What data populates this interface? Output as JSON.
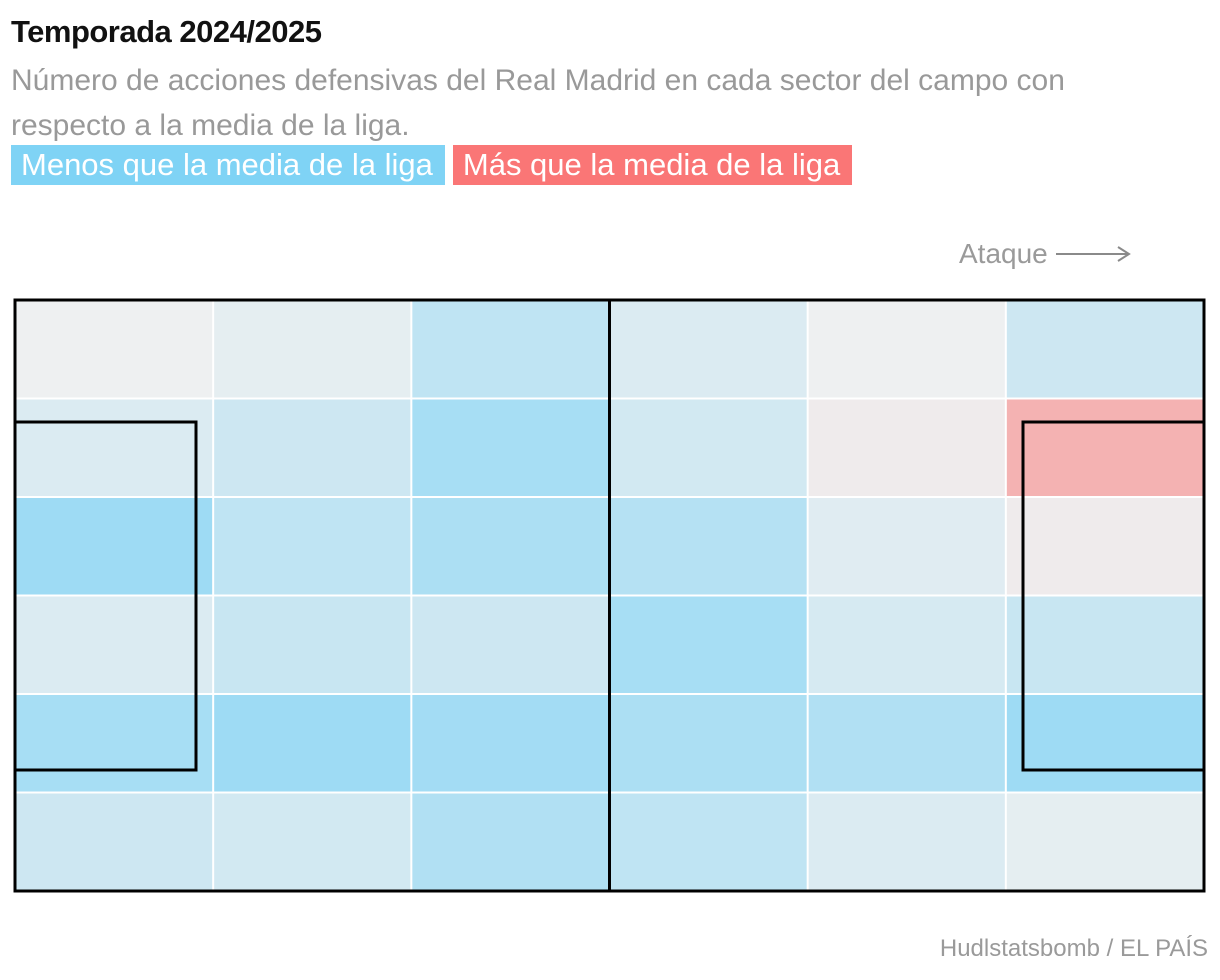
{
  "header": {
    "title": "Temporada 2024/2025",
    "subtitle": "Número de acciones defensivas del Real Madrid en cada sector del campo con respecto a la media de la liga."
  },
  "legend": {
    "less_label": "Menos que la media de la liga",
    "more_label": "Más que la media de la liga",
    "less_color": "#7fd3f5",
    "more_color": "#fa7676"
  },
  "direction": {
    "label": "Ataque",
    "icon": "arrow-right-icon"
  },
  "source": "Hudlstatsbomb / EL PAÍS",
  "chart_data": {
    "type": "heatmap",
    "title": "Temporada 2024/2025",
    "rows": 6,
    "cols": 6,
    "value_meaning": "Relative difference vs league average (negative = fewer actions, positive = more actions); estimated from color intensity",
    "value_range": [
      -1,
      1
    ],
    "cells": [
      [
        0.0,
        -0.1,
        -0.5,
        -0.2,
        0.0,
        -0.35
      ],
      [
        -0.2,
        -0.35,
        -0.75,
        -0.3,
        0.05,
        0.6
      ],
      [
        -0.85,
        -0.5,
        -0.7,
        -0.6,
        -0.15,
        0.05
      ],
      [
        -0.2,
        -0.4,
        -0.35,
        -0.75,
        -0.25,
        -0.4
      ],
      [
        -0.75,
        -0.85,
        -0.8,
        -0.7,
        -0.65,
        -0.85
      ],
      [
        -0.35,
        -0.3,
        -0.65,
        -0.5,
        -0.2,
        -0.1
      ]
    ],
    "colors": {
      "negative": "#7fd3f5",
      "positive": "#fa7676",
      "neutral": "#eef0f1"
    }
  }
}
